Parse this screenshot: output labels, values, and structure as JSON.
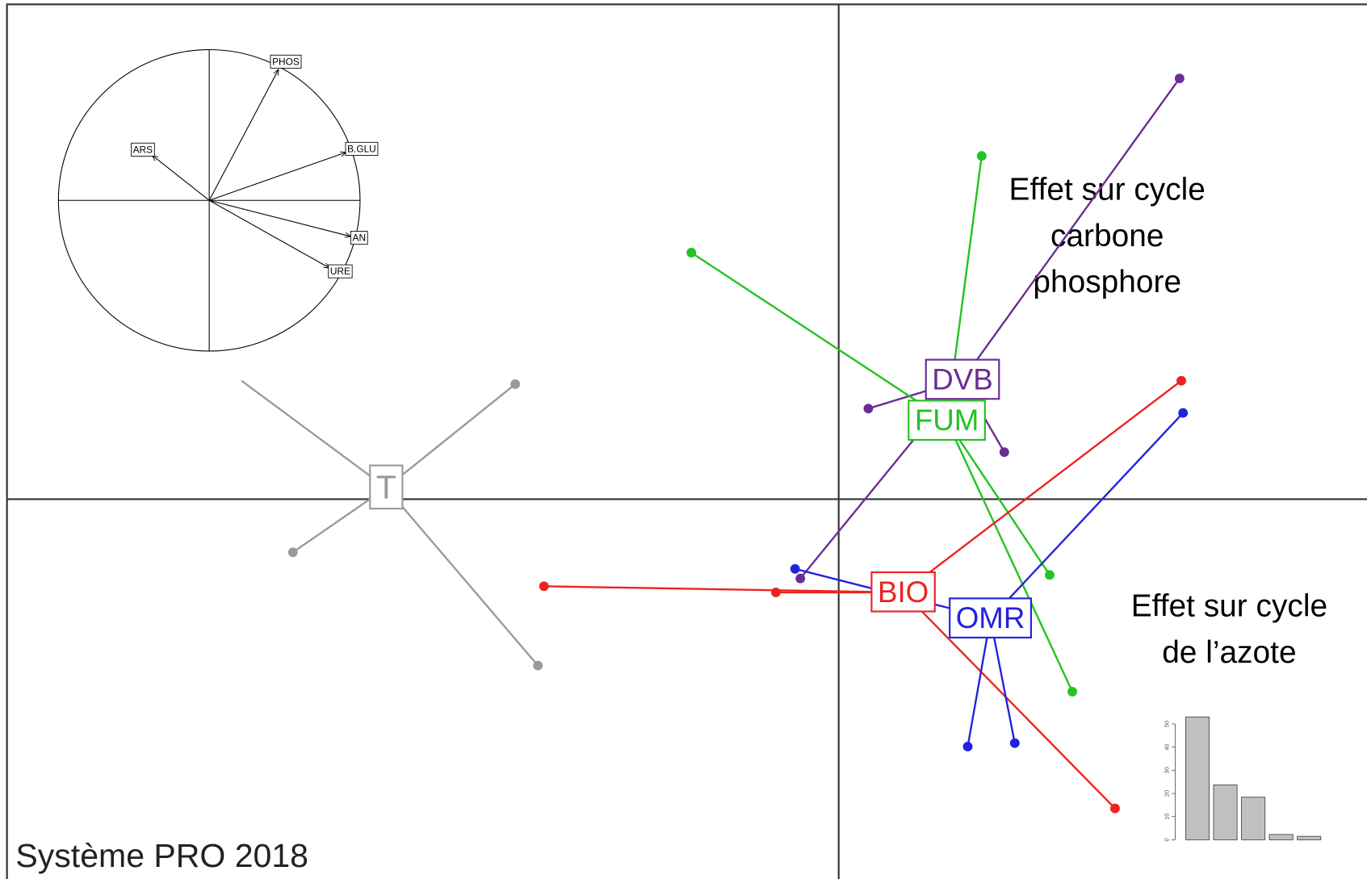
{
  "chart_data": [
    {
      "type": "scatter-class",
      "xlim": [
        -9.54,
        6.06
      ],
      "ylim": [
        -4.36,
        5.68
      ],
      "groups": [
        {
          "name": "T",
          "color": "#9a9a9a",
          "center_x": -5.19,
          "center_y": 0.13,
          "x": [
            -3.71,
            -6.26,
            -3.45,
            -6.85
          ],
          "y": [
            1.32,
            -0.61,
            -1.91,
            1.36
          ]
        },
        {
          "name": "DVB",
          "color": "#6b2d94",
          "center_x": 1.42,
          "center_y": 1.37,
          "x": [
            3.91,
            0.34,
            1.9,
            -0.44
          ],
          "y": [
            4.83,
            1.04,
            0.54,
            -0.91
          ]
        },
        {
          "name": "FUM",
          "color": "#22c322",
          "center_x": 1.24,
          "center_y": 0.9,
          "x": [
            1.64,
            -1.69,
            2.42,
            2.68
          ],
          "y": [
            3.94,
            2.83,
            -0.87,
            -2.21
          ]
        },
        {
          "name": "BIO",
          "color": "#ee2222",
          "center_x": 0.74,
          "center_y": -1.07,
          "x": [
            3.93,
            -3.38,
            -0.72,
            3.17
          ],
          "y": [
            1.36,
            -1.0,
            -1.07,
            -3.55
          ]
        },
        {
          "name": "OMR",
          "color": "#2222dd",
          "center_x": 1.74,
          "center_y": -1.37,
          "x": [
            3.95,
            -0.5,
            1.48,
            2.02
          ],
          "y": [
            0.99,
            -0.8,
            -2.84,
            -2.8
          ]
        }
      ]
    },
    {
      "type": "correlation-circle",
      "xlim": [
        -1,
        1
      ],
      "ylim": [
        -1,
        1
      ],
      "variables": [
        "PHOS",
        "B.GLU",
        "AN",
        "URE",
        "ARS"
      ],
      "x": [
        0.46,
        0.91,
        0.94,
        0.8,
        -0.38
      ],
      "y": [
        0.87,
        0.32,
        -0.24,
        -0.45,
        0.3
      ]
    },
    {
      "type": "bar",
      "values": [
        53,
        23.7,
        18.4,
        2.3,
        1.5
      ],
      "color": "#c0c0c0",
      "ylim": [
        0,
        53
      ],
      "yticks": [
        0,
        10,
        20,
        30,
        40,
        50
      ]
    }
  ],
  "annotations": [
    {
      "lines": [
        "Effet sur cycle",
        "carbone",
        "phosphore"
      ]
    },
    {
      "lines": [
        "Effet sur cycle",
        "de l’azote"
      ]
    }
  ],
  "footer": "Système PRO 2018"
}
